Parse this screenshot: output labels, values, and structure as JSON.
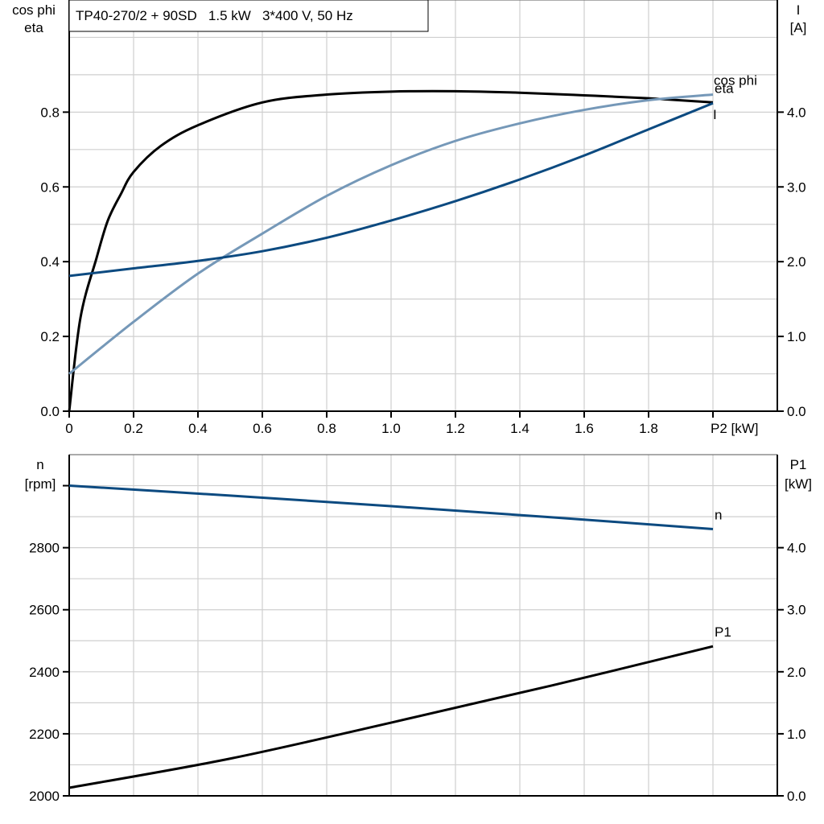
{
  "chart_data": [
    {
      "type": "line",
      "title": "TP40-270/2 + 90SD   1.5 kW   3*400 V, 50 Hz",
      "xlabel": "P2 [kW]",
      "ylabel_left": [
        "cos phi",
        "eta"
      ],
      "ylabel_right": [
        "I",
        "[A]"
      ],
      "xlim": [
        0,
        2.2
      ],
      "ylim_left": [
        0,
        1.1
      ],
      "ylim_right": [
        0,
        5.5
      ],
      "grid": true,
      "x_ticks": [
        "0",
        "0.2",
        "0.4",
        "0.6",
        "0.8",
        "1.0",
        "1.2",
        "1.4",
        "1.6",
        "1.8"
      ],
      "y_ticks_left": [
        "0.0",
        "0.2",
        "0.4",
        "0.6",
        "0.8"
      ],
      "y_ticks_right": [
        "0.0",
        "1.0",
        "2.0",
        "3.0",
        "4.0"
      ],
      "series": [
        {
          "name": "eta",
          "axis": "left",
          "color": "#000000",
          "x": [
            0,
            0.035,
            0.085,
            0.12,
            0.16,
            0.2,
            0.285,
            0.4,
            0.6,
            0.8,
            1.0,
            1.2,
            1.4,
            1.6,
            1.8,
            2.0
          ],
          "y": [
            0,
            0.25,
            0.41,
            0.51,
            0.58,
            0.64,
            0.71,
            0.765,
            0.826,
            0.847,
            0.855,
            0.856,
            0.852,
            0.845,
            0.837,
            0.826
          ]
        },
        {
          "name": "cos phi",
          "axis": "left",
          "color": "#7598b8",
          "x": [
            0,
            0.2,
            0.4,
            0.6,
            0.8,
            1.0,
            1.2,
            1.4,
            1.6,
            1.8,
            2.0
          ],
          "y": [
            0.1,
            0.239,
            0.368,
            0.475,
            0.576,
            0.658,
            0.723,
            0.77,
            0.806,
            0.832,
            0.847
          ]
        },
        {
          "name": "I",
          "axis": "right",
          "color": "#0c4a80",
          "x": [
            0,
            0.2,
            0.4,
            0.6,
            0.8,
            1.0,
            1.2,
            1.4,
            1.6,
            1.8,
            2.0
          ],
          "y": [
            1.81,
            1.91,
            2.01,
            2.14,
            2.32,
            2.55,
            2.81,
            3.1,
            3.42,
            3.77,
            4.12
          ]
        }
      ]
    },
    {
      "type": "line",
      "ylabel_left": [
        "n",
        "[rpm]"
      ],
      "ylabel_right": [
        "P1",
        "[kW]"
      ],
      "xlim": [
        0,
        2.2
      ],
      "ylim_left": [
        2000,
        3100
      ],
      "ylim_right": [
        0,
        5.5
      ],
      "grid": true,
      "y_ticks_left": [
        "2000",
        "2200",
        "2400",
        "2600",
        "2800"
      ],
      "y_ticks_right": [
        "0.0",
        "1.0",
        "2.0",
        "3.0",
        "4.0"
      ],
      "series": [
        {
          "name": "n",
          "axis": "left",
          "color": "#0c4a80",
          "x": [
            0,
            0.5,
            1.0,
            1.5,
            2.0
          ],
          "y": [
            3000,
            2968,
            2934,
            2898,
            2860
          ]
        },
        {
          "name": "P1",
          "axis": "right",
          "color": "#000000",
          "x": [
            0,
            0.5,
            1.0,
            1.5,
            2.0
          ],
          "y": [
            0.13,
            0.6,
            1.18,
            1.78,
            2.41
          ]
        }
      ]
    }
  ]
}
